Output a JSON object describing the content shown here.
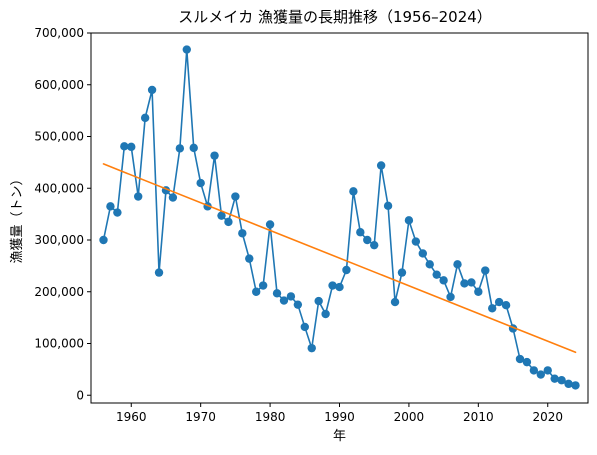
{
  "chart_data": {
    "type": "line",
    "title": "スルメイカ 漁獲量の長期推移（1956–2024）",
    "xlabel": "年",
    "ylabel": "漁獲量（トン）",
    "xlim": [
      1954.2,
      2025.8
    ],
    "ylim": [
      -15000,
      700000
    ],
    "x_ticks": [
      1960,
      1970,
      1980,
      1990,
      2000,
      2010,
      2020
    ],
    "y_ticks": [
      0,
      100000,
      200000,
      300000,
      400000,
      500000,
      600000,
      700000
    ],
    "y_tick_labels": [
      "0",
      "100,000",
      "200,000",
      "300,000",
      "400,000",
      "500,000",
      "600,000",
      "700,000"
    ],
    "grid": false,
    "series": [
      {
        "color": "#1f77b4",
        "marker": "circle",
        "x": [
          1956,
          1957,
          1958,
          1959,
          1960,
          1961,
          1962,
          1963,
          1964,
          1965,
          1966,
          1967,
          1968,
          1969,
          1970,
          1971,
          1972,
          1973,
          1974,
          1975,
          1976,
          1977,
          1978,
          1979,
          1980,
          1981,
          1982,
          1983,
          1984,
          1985,
          1986,
          1987,
          1988,
          1989,
          1990,
          1991,
          1992,
          1993,
          1994,
          1995,
          1996,
          1997,
          1998,
          1999,
          2000,
          2001,
          2002,
          2003,
          2004,
          2005,
          2006,
          2007,
          2008,
          2009,
          2010,
          2011,
          2012,
          2013,
          2014,
          2015,
          2016,
          2017,
          2018,
          2019,
          2020,
          2021,
          2022,
          2023,
          2024
        ],
        "y": [
          300000,
          365000,
          353000,
          481000,
          480000,
          384000,
          536000,
          590000,
          237000,
          396000,
          382000,
          477000,
          668000,
          478000,
          410000,
          365000,
          463000,
          347000,
          335000,
          384000,
          313000,
          264000,
          200000,
          212000,
          330000,
          197000,
          183000,
          191000,
          175000,
          132000,
          91000,
          182000,
          157000,
          212000,
          209000,
          242000,
          394000,
          315000,
          300000,
          290000,
          444000,
          366000,
          180000,
          237000,
          338000,
          297000,
          274000,
          253000,
          233000,
          222000,
          190000,
          253000,
          216000,
          218000,
          200000,
          241000,
          168000,
          180000,
          174000,
          129000,
          70000,
          64000,
          48000,
          40000,
          48000,
          32000,
          29000,
          22000,
          19000
        ]
      },
      {
        "color": "#ff7f0e",
        "marker": "none",
        "x": [
          1956,
          2024
        ],
        "y": [
          447000,
          83000
        ]
      }
    ]
  }
}
